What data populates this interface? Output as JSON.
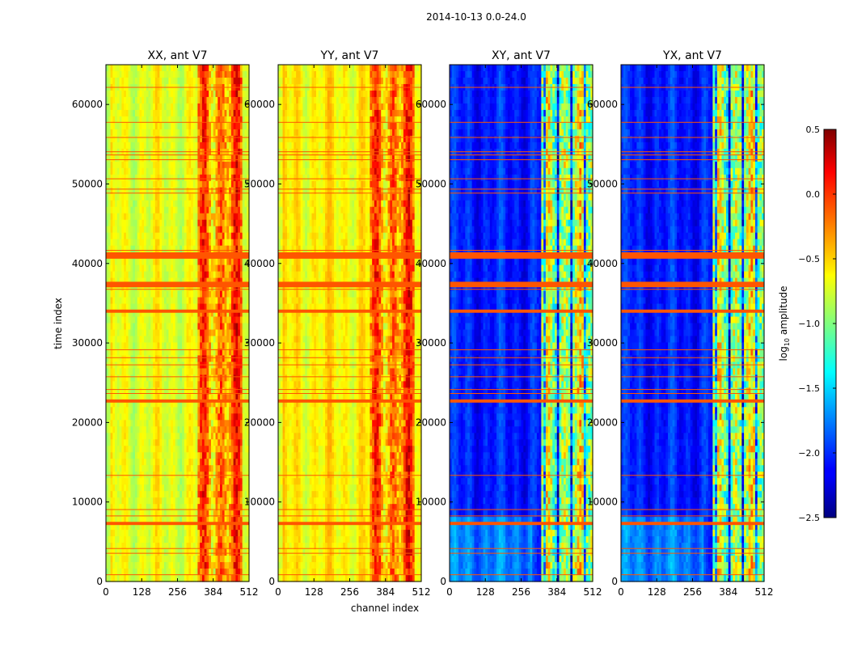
{
  "chart_data": {
    "type": "heatmap",
    "title": "2014-10-13 0.0-24.0",
    "xlabel": "channel index",
    "ylabel": "time index",
    "xlim": [
      0,
      512
    ],
    "ylim": [
      0,
      65000
    ],
    "x_ticks": [
      0,
      128,
      256,
      384,
      512
    ],
    "y_ticks": [
      0,
      10000,
      20000,
      30000,
      40000,
      50000,
      60000
    ],
    "panels": [
      {
        "title": "XX, ant V7",
        "pol": "XX",
        "base_level": -0.7,
        "rfi_band": [
          326,
          490
        ],
        "rfi_level": -0.25
      },
      {
        "title": "YY, ant V7",
        "pol": "YY",
        "base_level": -0.6,
        "rfi_band": [
          326,
          490
        ],
        "rfi_level": -0.25
      },
      {
        "title": "XY, ant V7",
        "pol": "XY",
        "base_level": -2.05,
        "rfi_band": [
          326,
          512
        ],
        "rfi_level": -0.9
      },
      {
        "title": "YX, ant V7",
        "pol": "YX",
        "base_level": -2.05,
        "rfi_band": [
          326,
          512
        ],
        "rfi_level": -0.9
      }
    ],
    "flagged_time_ranges": [
      [
        40600,
        41400
      ],
      [
        37000,
        37700
      ],
      [
        33800,
        34200
      ],
      [
        22500,
        22900
      ],
      [
        7100,
        7500
      ]
    ],
    "flagged_time_lines": [
      62200,
      57800,
      55900,
      54100,
      53700,
      53100,
      50700,
      49400,
      48900,
      41700,
      36800,
      29200,
      28200,
      27300,
      25800,
      24200,
      23700,
      13400,
      9100,
      8300,
      4200,
      3600,
      900
    ],
    "colorbar": {
      "label_prefix": "log",
      "label_sub": "10",
      "label_suffix": " amplitude",
      "min": -2.5,
      "max": 0.5,
      "ticks": [
        -2.5,
        -2.0,
        -1.5,
        -1.0,
        -0.5,
        0.0,
        0.5
      ],
      "tick_labels": [
        "−2.5",
        "−2.0",
        "−1.5",
        "−1.0",
        "−0.5",
        "0.0",
        "0.5"
      ]
    },
    "flag_color": "#ff5500"
  }
}
